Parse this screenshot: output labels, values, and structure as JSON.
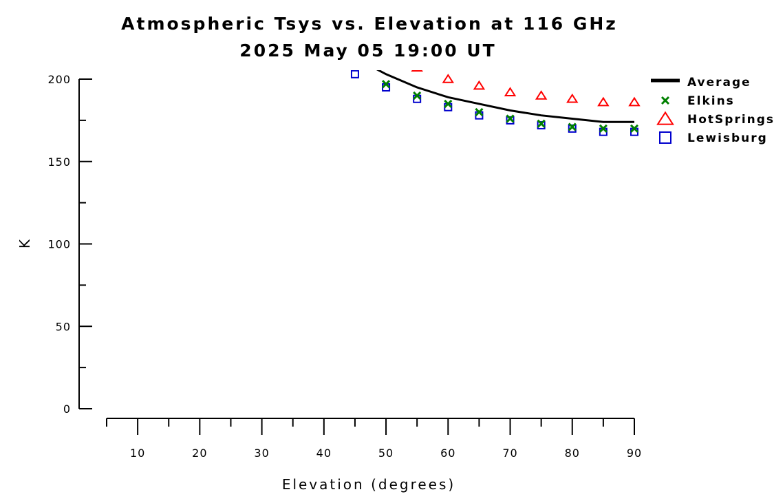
{
  "chart_data": {
    "type": "scatter",
    "title": "Atmospheric Tsys vs. Elevation at 116 GHz",
    "subtitle": "2025 May 05 19:00 UT",
    "xlabel": "Elevation (degrees)",
    "ylabel": "K",
    "xlim": [
      5,
      90
    ],
    "ylim": [
      0,
      200
    ],
    "x_ticks": [
      "10",
      "20",
      "30",
      "40",
      "50",
      "60",
      "70",
      "80",
      "90"
    ],
    "y_ticks": [
      "0",
      "50",
      "100",
      "150",
      "200"
    ],
    "legend_position": "top-right",
    "grid": false,
    "series": [
      {
        "name": "Average",
        "style": "line",
        "color": "#000000",
        "x": [
          45,
          50,
          55,
          60,
          65,
          70,
          75,
          80,
          85,
          90
        ],
        "values": [
          213,
          203,
          195,
          189,
          185,
          181,
          178,
          176,
          174,
          174
        ]
      },
      {
        "name": "Elkins",
        "style": "x",
        "color": "#008000",
        "x": [
          50,
          55,
          60,
          65,
          70,
          75,
          80,
          85,
          90
        ],
        "values": [
          197,
          190,
          185,
          180,
          176,
          173,
          171,
          170,
          170
        ]
      },
      {
        "name": "HotSprings",
        "style": "triangle",
        "color": "#ff0000",
        "x": [
          55,
          60,
          65,
          70,
          75,
          80,
          85,
          90
        ],
        "values": [
          207,
          200,
          196,
          192,
          190,
          188,
          186,
          186
        ]
      },
      {
        "name": "Lewisburg",
        "style": "square",
        "color": "#0000cd",
        "x": [
          45,
          50,
          55,
          60,
          65,
          70,
          75,
          80,
          85,
          90
        ],
        "values": [
          203,
          195,
          188,
          183,
          178,
          175,
          172,
          170,
          168,
          168
        ]
      }
    ]
  }
}
